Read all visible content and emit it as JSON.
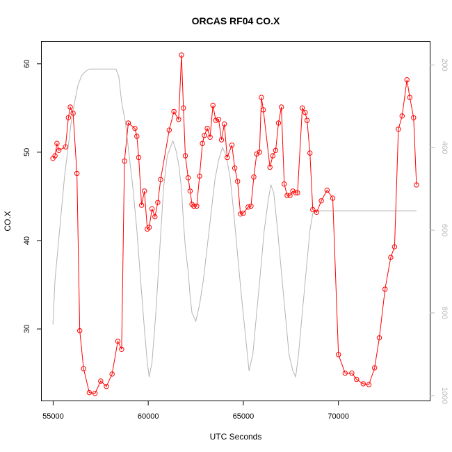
{
  "chart_data": {
    "type": "line",
    "title": "ORCAS RF04 CO.X",
    "xlabel": "UTC Seconds",
    "ylabel": "CO.X",
    "xlim": [
      54400,
      74800
    ],
    "ylim": [
      21.9,
      62.5
    ],
    "y2lim": [
      1012,
      144
    ],
    "x_ticks": [
      55000,
      60000,
      65000,
      70000
    ],
    "x_tick_labels": [
      "55000",
      "60000",
      "65000",
      "70000"
    ],
    "y_ticks": [
      30,
      40,
      50,
      60
    ],
    "y_tick_labels": [
      "30",
      "40",
      "50",
      "60"
    ],
    "y2_ticks": [
      200,
      400,
      600,
      800,
      1000
    ],
    "y2_tick_labels": [
      "200",
      "400",
      "600",
      "800",
      "1000"
    ],
    "grid": false,
    "series": [
      {
        "color": "#ff0000",
        "axis": "left",
        "marker": "open-circle",
        "x": [
          54990,
          55100,
          55200,
          55300,
          55650,
          55800,
          55900,
          56050,
          56250,
          56400,
          56600,
          56900,
          57200,
          57500,
          57800,
          58100,
          58400,
          58600,
          58750,
          58950,
          59300,
          59400,
          59500,
          59650,
          59800,
          59950,
          60050,
          60200,
          60350,
          60500,
          60650,
          61100,
          61350,
          61600,
          61750,
          61850,
          61950,
          62100,
          62200,
          62300,
          62400,
          62550,
          62700,
          62850,
          62950,
          63100,
          63250,
          63400,
          63550,
          63700,
          63850,
          64000,
          64150,
          64400,
          64550,
          64700,
          64850,
          65000,
          65250,
          65400,
          65550,
          65700,
          65850,
          65950,
          66050,
          66400,
          66550,
          66700,
          66850,
          67000,
          67150,
          67300,
          67450,
          67600,
          67750,
          67850,
          68100,
          68250,
          68350,
          68500,
          68650,
          68850,
          69100,
          69400,
          69700,
          70000,
          70350,
          70700,
          70950,
          71300,
          71600,
          71900,
          72150,
          72450,
          72750,
          72950,
          73150,
          73350,
          73600,
          73750,
          73950,
          74100
        ],
        "y": [
          49.3,
          49.6,
          51.0,
          50.2,
          50.6,
          53.9,
          55.1,
          54.4,
          47.6,
          29.8,
          25.5,
          22.8,
          22.7,
          24.1,
          23.5,
          24.9,
          28.6,
          27.7,
          49.0,
          53.3,
          52.7,
          51.8,
          49.4,
          44.0,
          45.6,
          41.3,
          41.5,
          43.6,
          42.7,
          44.3,
          46.9,
          52.5,
          54.6,
          53.7,
          61.0,
          55.0,
          49.6,
          47.1,
          45.6,
          44.1,
          43.9,
          43.9,
          47.3,
          51.0,
          51.9,
          52.7,
          51.7,
          55.3,
          53.6,
          53.7,
          51.4,
          53.2,
          49.4,
          50.8,
          48.2,
          46.7,
          43.0,
          43.1,
          43.8,
          43.9,
          47.2,
          49.8,
          50.0,
          56.2,
          54.8,
          48.3,
          49.6,
          50.2,
          53.3,
          55.1,
          46.4,
          45.1,
          45.1,
          45.6,
          45.4,
          45.4,
          55.0,
          54.5,
          53.6,
          49.9,
          43.5,
          43.2,
          44.5,
          45.7,
          44.8,
          27.1,
          25.0,
          25.0,
          24.3,
          23.8,
          23.7,
          25.6,
          29.0,
          34.5,
          38.1,
          39.3,
          52.6,
          54.1,
          58.2,
          56.2,
          53.9,
          46.3
        ]
      },
      {
        "color": "#b4b4b4",
        "axis": "right",
        "marker": "none",
        "x": [
          54990,
          55100,
          55300,
          55600,
          56000,
          56300,
          56500,
          56700,
          56900,
          57200,
          57600,
          58000,
          58300,
          58450,
          58600,
          58800,
          59000,
          59200,
          59400,
          59600,
          59800,
          59950,
          60050,
          60200,
          60400,
          60600,
          60800,
          61000,
          61200,
          61300,
          61450,
          61600,
          61750,
          61850,
          61950,
          62100,
          62200,
          62300,
          62500,
          62700,
          62900,
          63100,
          63300,
          63500,
          63700,
          63900,
          64100,
          64300,
          64500,
          64700,
          64900,
          65100,
          65300,
          65500,
          65700,
          65900,
          66100,
          66300,
          66450,
          66600,
          66800,
          67000,
          67200,
          67400,
          67600,
          67750,
          67900,
          68100,
          68300,
          68500,
          68650,
          68800,
          69000,
          69300,
          69600,
          69900,
          70200,
          70500,
          70800,
          71200,
          71600,
          72000,
          72400,
          72800,
          73000,
          73200,
          73400,
          73600,
          73800,
          74000,
          74100
        ],
        "y": [
          828,
          720,
          620,
          470,
          320,
          250,
          226,
          216,
          210,
          210,
          210,
          210,
          210,
          228,
          290,
          340,
          420,
          500,
          600,
          720,
          840,
          920,
          955,
          920,
          800,
          650,
          500,
          420,
          395,
          384,
          405,
          440,
          500,
          580,
          640,
          700,
          760,
          800,
          820,
          780,
          720,
          640,
          560,
          480,
          430,
          400,
          420,
          470,
          560,
          660,
          760,
          850,
          940,
          900,
          800,
          700,
          600,
          530,
          490,
          510,
          600,
          700,
          800,
          900,
          940,
          955,
          900,
          800,
          700,
          600,
          560,
          555,
          553,
          553,
          553,
          553,
          553,
          553,
          553,
          553,
          553,
          553,
          553,
          553,
          553,
          553,
          553,
          553,
          553,
          553,
          553
        ]
      }
    ]
  }
}
